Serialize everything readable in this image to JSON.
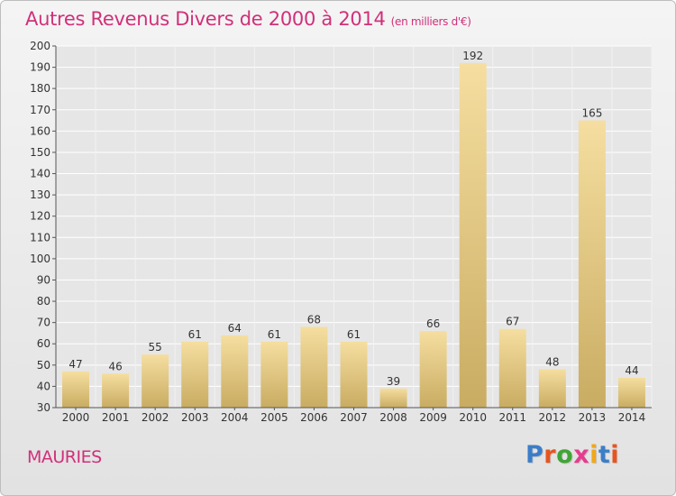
{
  "header": {
    "title": "Autres Revenus Divers de 2000 à 2014",
    "subtitle": "(en milliers d'€)"
  },
  "footer": {
    "commune": "MAURIES",
    "logo": [
      "P",
      "r",
      "o",
      "x",
      "i",
      "t",
      "i"
    ],
    "logo_colors": [
      "#3b7ec8",
      "#e6551f",
      "#3fa535",
      "#e63c8f",
      "#f0a81b",
      "#3b7ec8",
      "#e6551f"
    ]
  },
  "colors": {
    "title": "#d0307a",
    "bar_light": "#f5dea0",
    "bar_dark": "#c9ac62",
    "grid": "#ffffff"
  },
  "chart_data": {
    "type": "bar",
    "title": "Autres Revenus Divers de 2000 à 2014",
    "subtitle": "(en milliers d'€)",
    "categories": [
      "2000",
      "2001",
      "2002",
      "2003",
      "2004",
      "2005",
      "2006",
      "2007",
      "2008",
      "2009",
      "2010",
      "2011",
      "2012",
      "2013",
      "2014"
    ],
    "values": [
      47,
      46,
      55,
      61,
      64,
      61,
      68,
      61,
      39,
      66,
      192,
      67,
      48,
      165,
      44
    ],
    "ylim": [
      30,
      200
    ],
    "ytick_step": 10,
    "grid": true
  }
}
